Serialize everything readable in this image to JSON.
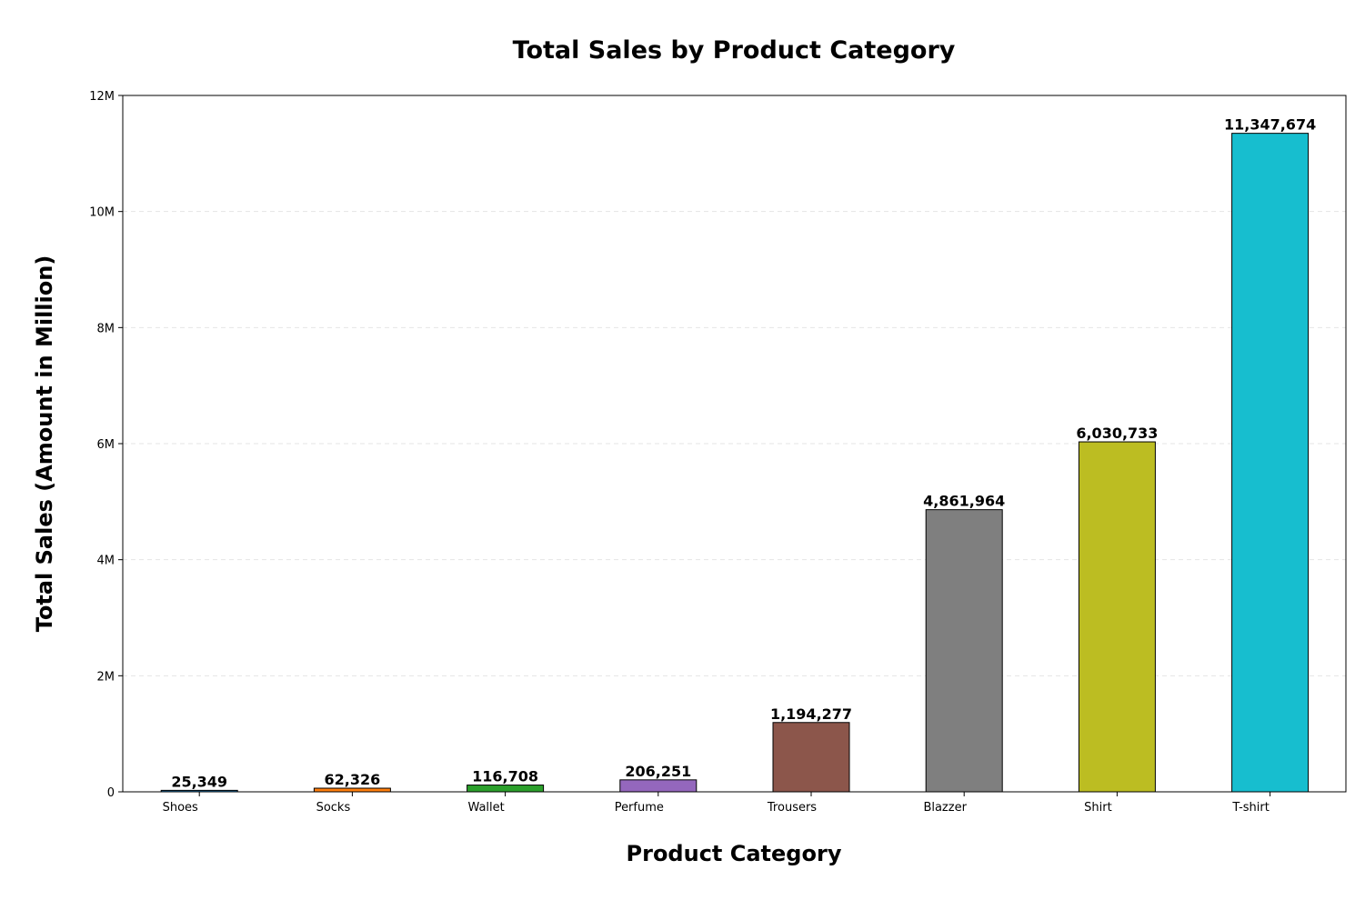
{
  "chart_data": {
    "type": "bar",
    "title": "Total Sales by Product Category",
    "xlabel": "Product Category",
    "ylabel": "Total Sales (Amount in Million)",
    "categories": [
      "Shoes",
      "Socks",
      "Wallet",
      "Perfume",
      "Trousers",
      "Blazzer",
      "Shirt",
      "T-shirt"
    ],
    "values": [
      25349,
      62326,
      116708,
      206251,
      1194277,
      4861964,
      6030733,
      11347674
    ],
    "value_labels": [
      "25,349",
      "62,326",
      "116,708",
      "206,251",
      "1,194,277",
      "4,861,964",
      "6,030,733",
      "11,347,674"
    ],
    "colors": [
      "#1f77b4",
      "#ff7f0e",
      "#2ca02c",
      "#9467bd",
      "#8c564b",
      "#7f7f7f",
      "#bcbd22",
      "#17becf"
    ],
    "ylim": [
      0,
      12000000
    ],
    "yticks": [
      0,
      2000000,
      4000000,
      6000000,
      8000000,
      10000000,
      12000000
    ],
    "ytick_labels": [
      "0",
      "2M",
      "4M",
      "6M",
      "8M",
      "10M",
      "12M"
    ],
    "grid": "y-dashed",
    "legend": "none"
  }
}
